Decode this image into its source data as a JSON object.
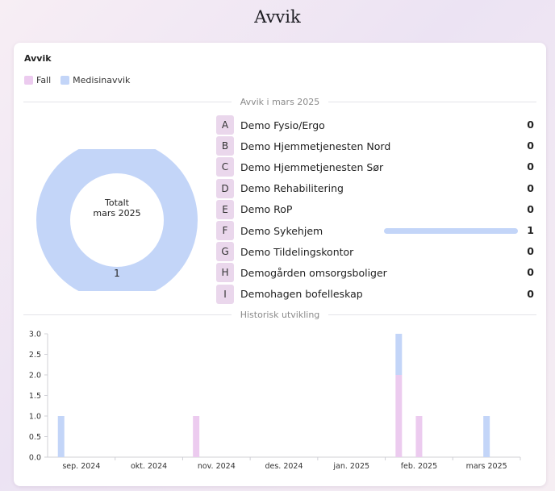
{
  "page": {
    "title": "Avvik"
  },
  "card": {
    "title": "Avvik",
    "legend": [
      {
        "label": "Fall",
        "color": "#eccbef"
      },
      {
        "label": "Medisinavvik",
        "color": "#c3d5f8"
      }
    ],
    "month_divider": "Avvik i mars 2025",
    "history_divider": "Historisk utvikling"
  },
  "donut": {
    "center_line1": "Totalt",
    "center_line2": "mars 2025",
    "total_value": "1",
    "segments": [
      {
        "label": "Medisinavvik",
        "value": 1,
        "color": "#c3d5f8"
      }
    ]
  },
  "units": [
    {
      "letter": "A",
      "name": "Demo Fysio/Ergo",
      "count": 0
    },
    {
      "letter": "B",
      "name": "Demo Hjemmetjenesten Nord",
      "count": 0
    },
    {
      "letter": "C",
      "name": "Demo Hjemmetjenesten Sør",
      "count": 0
    },
    {
      "letter": "D",
      "name": "Demo Rehabilitering",
      "count": 0
    },
    {
      "letter": "E",
      "name": "Demo RoP",
      "count": 0
    },
    {
      "letter": "F",
      "name": "Demo Sykehjem",
      "count": 1
    },
    {
      "letter": "G",
      "name": "Demo Tildelingskontor",
      "count": 0
    },
    {
      "letter": "H",
      "name": "Demogården omsorgsboliger",
      "count": 0
    },
    {
      "letter": "I",
      "name": "Demohagen bofelleskap",
      "count": 0
    }
  ],
  "colors": {
    "fall": "#eccbef",
    "medisinavvik": "#c3d5f8",
    "badge": "#ead7ec"
  },
  "chart_data": {
    "type": "bar",
    "stacked": true,
    "categories": [
      "sep. 2024",
      "okt. 2024",
      "nov. 2024",
      "des. 2024",
      "jan. 2025",
      "feb. 2025",
      "mars 2025"
    ],
    "ylim": [
      0,
      3
    ],
    "yticks": [
      "0.0",
      "0.5",
      "1.0",
      "1.5",
      "2.0",
      "2.5",
      "3.0"
    ],
    "bars": [
      {
        "category": "sep. 2024",
        "offset": -0.3,
        "series": "Medisinavvik",
        "value": 1
      },
      {
        "category": "nov. 2024",
        "offset": -0.3,
        "series": "Fall",
        "value": 1
      },
      {
        "category": "feb. 2025",
        "offset": -0.3,
        "series": "Fall",
        "value": 2
      },
      {
        "category": "feb. 2025",
        "offset": -0.3,
        "series": "Medisinavvik",
        "value": 1
      },
      {
        "category": "feb. 2025",
        "offset": 0,
        "series": "Fall",
        "value": 1
      },
      {
        "category": "mars 2025",
        "offset": 0,
        "series": "Medisinavvik",
        "value": 1
      }
    ],
    "grid": false,
    "legend": "top-left"
  }
}
